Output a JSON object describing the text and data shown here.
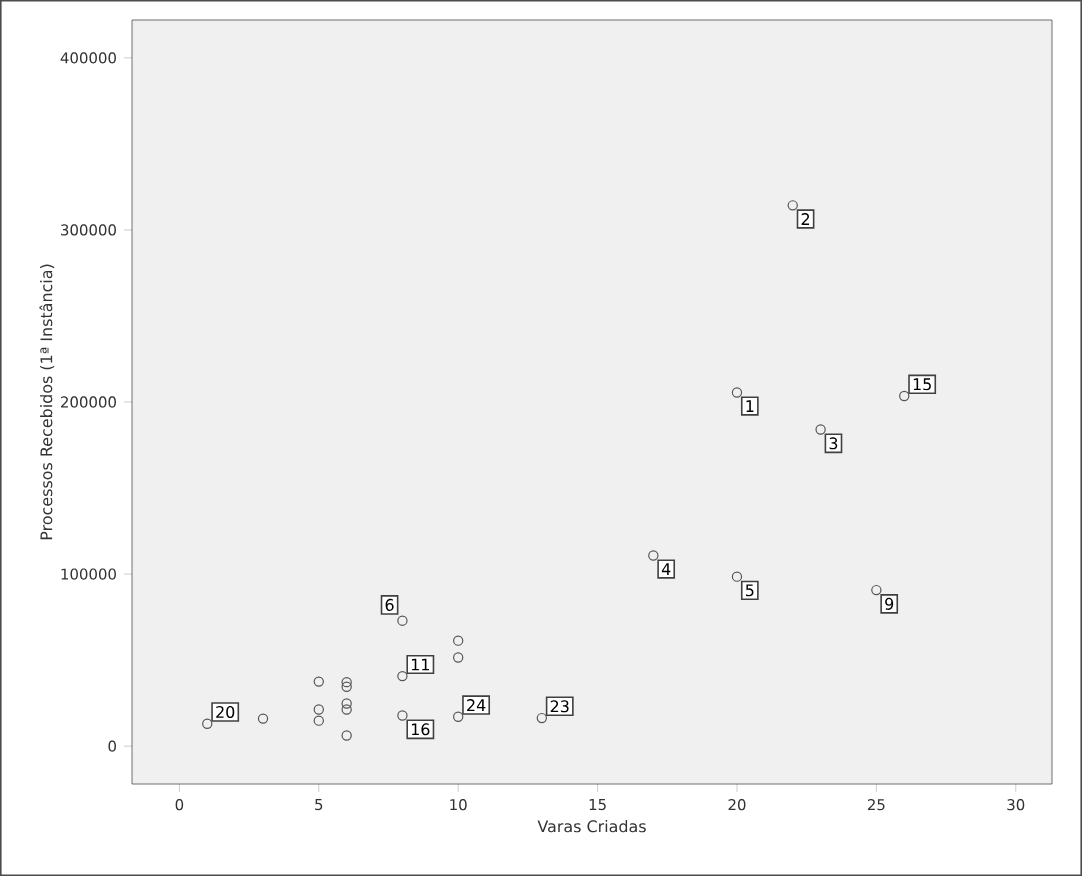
{
  "chart_data": {
    "type": "scatter",
    "xlabel": "Varas Criadas",
    "ylabel": "Processos Recebidos (1ª Instância)",
    "x": [
      1,
      3,
      5,
      5,
      5,
      6,
      6,
      6,
      6,
      6,
      8,
      8,
      8,
      10,
      10,
      10,
      13,
      17,
      20,
      20,
      22,
      23,
      25,
      26
    ],
    "series": [
      {
        "color": "#555555",
        "values": [
          13000,
          16000,
          37500,
          21300,
          14800,
          37200,
          34500,
          24800,
          21300,
          6200,
          72900,
          40700,
          17800,
          61300,
          51500,
          17100,
          16300,
          110800,
          205500,
          98500,
          314300,
          184000,
          90700,
          203500
        ]
      }
    ],
    "marker": "circle",
    "xlim": [
      -1.7,
      31.3
    ],
    "ylim": [
      -22000,
      422000
    ],
    "xticks": [
      0,
      5,
      10,
      15,
      20,
      25,
      30
    ],
    "yticks": [
      0,
      100000,
      200000,
      300000,
      400000
    ],
    "annotations": [
      {
        "text": "1",
        "x": 20,
        "y": 205500
      },
      {
        "text": "2",
        "x": 22,
        "y": 314300
      },
      {
        "text": "3",
        "x": 23,
        "y": 184000
      },
      {
        "text": "4",
        "x": 17,
        "y": 110800
      },
      {
        "text": "5",
        "x": 20,
        "y": 98500
      },
      {
        "text": "6",
        "x": 8,
        "y": 72900
      },
      {
        "text": "9",
        "x": 25,
        "y": 90700
      },
      {
        "text": "11",
        "x": 8,
        "y": 40700
      },
      {
        "text": "15",
        "x": 26,
        "y": 203500
      },
      {
        "text": "16",
        "x": 8,
        "y": 17800
      },
      {
        "text": "20",
        "x": 1,
        "y": 13000
      },
      {
        "text": "23",
        "x": 13,
        "y": 16300
      },
      {
        "text": "24",
        "x": 10,
        "y": 17100
      }
    ]
  }
}
